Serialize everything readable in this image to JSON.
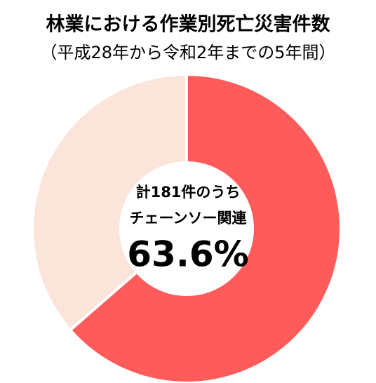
{
  "chart_data": {
    "type": "donut",
    "title": "林業における作業別死亡災害件数",
    "subtitle": "（平成28年から令和2年までの5年間）",
    "annotations": [
      "計181件のうち",
      "チェーンソー関連"
    ],
    "values": [
      63.6,
      36.4
    ],
    "value_labels": [
      "63.6%",
      null
    ],
    "colors": [
      "#ff5b5b",
      "#fbe5db"
    ]
  }
}
